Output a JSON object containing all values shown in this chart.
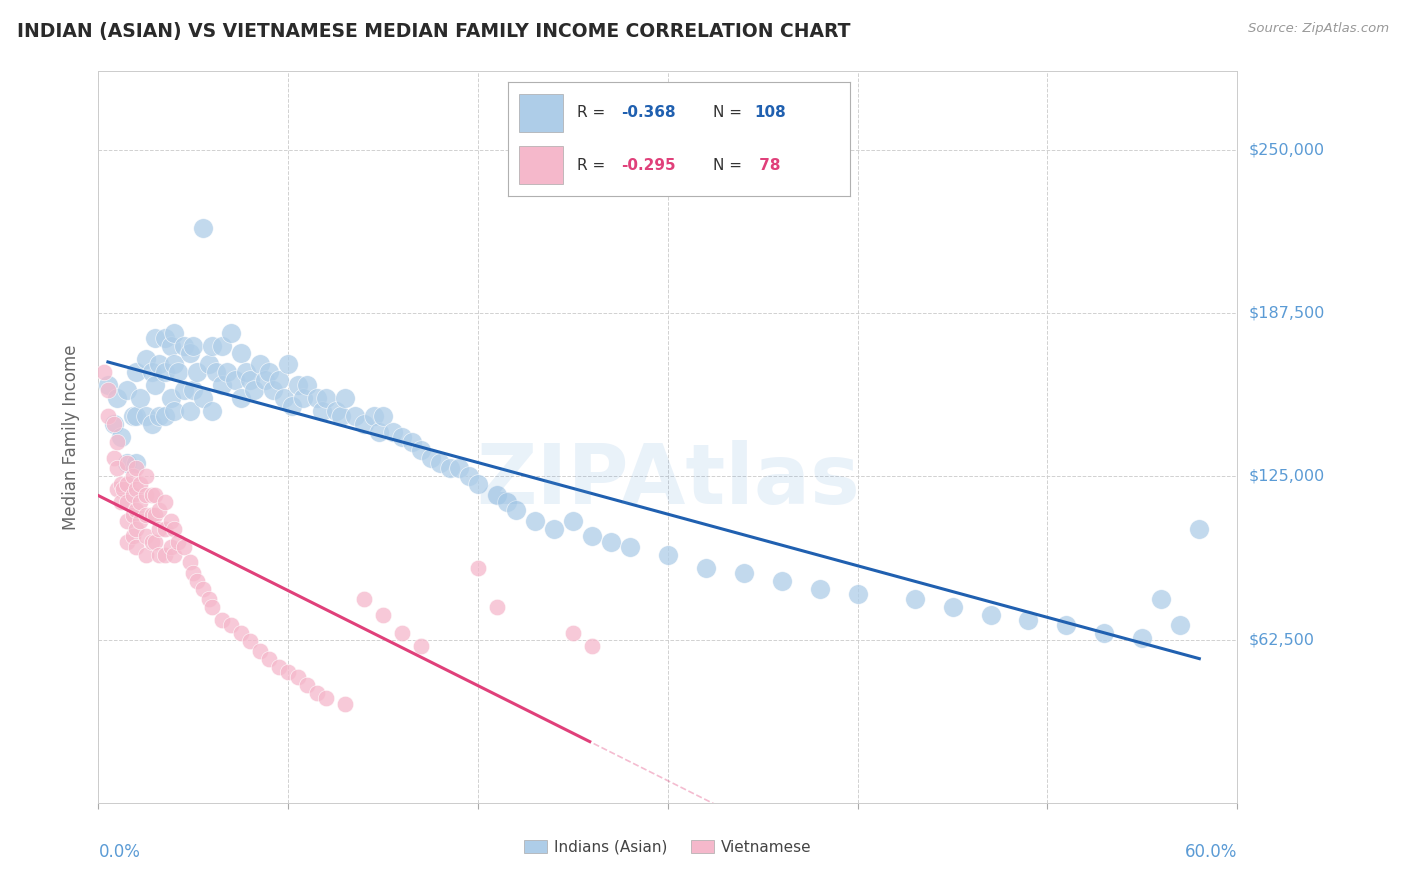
{
  "title": "INDIAN (ASIAN) VS VIETNAMESE MEDIAN FAMILY INCOME CORRELATION CHART",
  "source": "Source: ZipAtlas.com",
  "ylabel": "Median Family Income",
  "ytick_labels": [
    "$62,500",
    "$125,000",
    "$187,500",
    "$250,000"
  ],
  "ytick_values": [
    62500,
    125000,
    187500,
    250000
  ],
  "ymin": 0,
  "ymax": 280000,
  "xmin": 0.0,
  "xmax": 0.6,
  "legend_indian_R": "-0.368",
  "legend_indian_N": "108",
  "legend_viet_R": "-0.295",
  "legend_viet_N": "78",
  "watermark": "ZIPAtlas",
  "blue_color": "#aecde8",
  "blue_line_color": "#2060b0",
  "pink_color": "#f5b8cb",
  "pink_line_color": "#e0407a",
  "axis_label_color": "#5b9bd5",
  "background_color": "#ffffff",
  "indian_x": [
    0.005,
    0.008,
    0.01,
    0.012,
    0.015,
    0.015,
    0.018,
    0.02,
    0.02,
    0.02,
    0.022,
    0.025,
    0.025,
    0.028,
    0.028,
    0.03,
    0.03,
    0.032,
    0.032,
    0.035,
    0.035,
    0.035,
    0.038,
    0.038,
    0.04,
    0.04,
    0.04,
    0.042,
    0.045,
    0.045,
    0.048,
    0.048,
    0.05,
    0.05,
    0.052,
    0.055,
    0.055,
    0.058,
    0.06,
    0.06,
    0.062,
    0.065,
    0.065,
    0.068,
    0.07,
    0.072,
    0.075,
    0.075,
    0.078,
    0.08,
    0.082,
    0.085,
    0.088,
    0.09,
    0.092,
    0.095,
    0.098,
    0.1,
    0.102,
    0.105,
    0.108,
    0.11,
    0.115,
    0.118,
    0.12,
    0.125,
    0.128,
    0.13,
    0.135,
    0.14,
    0.145,
    0.148,
    0.15,
    0.155,
    0.16,
    0.165,
    0.17,
    0.175,
    0.18,
    0.185,
    0.19,
    0.195,
    0.2,
    0.21,
    0.215,
    0.22,
    0.23,
    0.24,
    0.25,
    0.26,
    0.27,
    0.28,
    0.3,
    0.32,
    0.34,
    0.36,
    0.38,
    0.4,
    0.43,
    0.45,
    0.47,
    0.49,
    0.51,
    0.53,
    0.55,
    0.56,
    0.57,
    0.58
  ],
  "indian_y": [
    160000,
    145000,
    155000,
    140000,
    158000,
    130000,
    148000,
    165000,
    148000,
    130000,
    155000,
    170000,
    148000,
    165000,
    145000,
    178000,
    160000,
    168000,
    148000,
    178000,
    165000,
    148000,
    175000,
    155000,
    180000,
    168000,
    150000,
    165000,
    175000,
    158000,
    172000,
    150000,
    175000,
    158000,
    165000,
    220000,
    155000,
    168000,
    175000,
    150000,
    165000,
    175000,
    160000,
    165000,
    180000,
    162000,
    172000,
    155000,
    165000,
    162000,
    158000,
    168000,
    162000,
    165000,
    158000,
    162000,
    155000,
    168000,
    152000,
    160000,
    155000,
    160000,
    155000,
    150000,
    155000,
    150000,
    148000,
    155000,
    148000,
    145000,
    148000,
    142000,
    148000,
    142000,
    140000,
    138000,
    135000,
    132000,
    130000,
    128000,
    128000,
    125000,
    122000,
    118000,
    115000,
    112000,
    108000,
    105000,
    108000,
    102000,
    100000,
    98000,
    95000,
    90000,
    88000,
    85000,
    82000,
    80000,
    78000,
    75000,
    72000,
    70000,
    68000,
    65000,
    63000,
    78000,
    68000,
    105000
  ],
  "viet_x": [
    0.003,
    0.005,
    0.005,
    0.008,
    0.008,
    0.01,
    0.01,
    0.01,
    0.012,
    0.012,
    0.013,
    0.015,
    0.015,
    0.015,
    0.015,
    0.015,
    0.018,
    0.018,
    0.018,
    0.018,
    0.02,
    0.02,
    0.02,
    0.02,
    0.02,
    0.022,
    0.022,
    0.022,
    0.025,
    0.025,
    0.025,
    0.025,
    0.025,
    0.028,
    0.028,
    0.028,
    0.03,
    0.03,
    0.03,
    0.032,
    0.032,
    0.032,
    0.035,
    0.035,
    0.035,
    0.038,
    0.038,
    0.04,
    0.04,
    0.042,
    0.045,
    0.048,
    0.05,
    0.052,
    0.055,
    0.058,
    0.06,
    0.065,
    0.07,
    0.075,
    0.08,
    0.085,
    0.09,
    0.095,
    0.1,
    0.105,
    0.11,
    0.115,
    0.12,
    0.13,
    0.14,
    0.15,
    0.16,
    0.17,
    0.2,
    0.21,
    0.25,
    0.26
  ],
  "viet_y": [
    165000,
    158000,
    148000,
    145000,
    132000,
    138000,
    128000,
    120000,
    122000,
    115000,
    120000,
    130000,
    122000,
    115000,
    108000,
    100000,
    125000,
    118000,
    110000,
    102000,
    128000,
    120000,
    112000,
    105000,
    98000,
    122000,
    115000,
    108000,
    125000,
    118000,
    110000,
    102000,
    95000,
    118000,
    110000,
    100000,
    118000,
    110000,
    100000,
    112000,
    105000,
    95000,
    115000,
    105000,
    95000,
    108000,
    98000,
    105000,
    95000,
    100000,
    98000,
    92000,
    88000,
    85000,
    82000,
    78000,
    75000,
    70000,
    68000,
    65000,
    62000,
    58000,
    55000,
    52000,
    50000,
    48000,
    45000,
    42000,
    40000,
    38000,
    78000,
    72000,
    65000,
    60000,
    90000,
    75000,
    65000,
    60000
  ]
}
